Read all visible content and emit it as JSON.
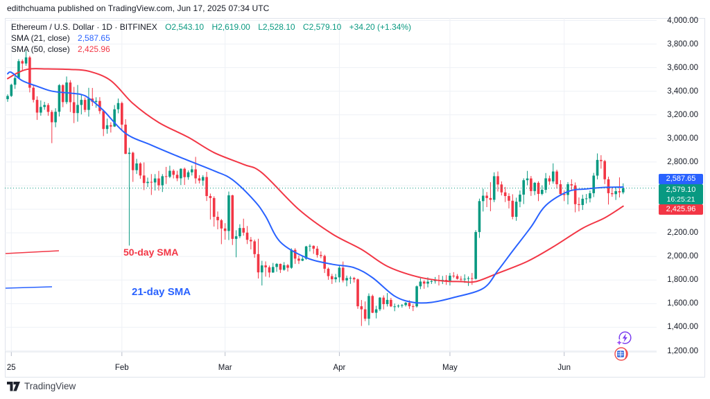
{
  "publication_note": "edithchuama published on TradingView.com, Jun 17, 2025 07:34 UTC",
  "legend": {
    "symbol_title": "Ethereum / U.S. Dollar · 1D · BITFINEX",
    "ohlc": {
      "open": "O2,543.10",
      "high": "H2,619.00",
      "low": "L2,528.10",
      "close": "C2,579.10",
      "change": "+34.20 (+1.34%)"
    },
    "sma21": {
      "label": "SMA (21, close)",
      "value": "2,587.65"
    },
    "sma50": {
      "label": "SMA (50, close)",
      "value": "2,425.96"
    }
  },
  "badges": {
    "sma21": "2,587.65",
    "last": "2,579.10",
    "countdown": "16:25:21",
    "sma50": "2,425.96"
  },
  "logo_text": "TradingView",
  "colors": {
    "up": "#089981",
    "down": "#f23645",
    "sma21": "#2962ff",
    "sma50": "#f23645",
    "grid": "#eef1f6",
    "border": "#dfe3eb",
    "text": "#131722",
    "tick": "#b7bcc9"
  },
  "price_axis": {
    "labels": [
      {
        "label": "4,000.00",
        "value": 4000
      },
      {
        "label": "3,800.00",
        "value": 3800
      },
      {
        "label": "3,600.00",
        "value": 3600
      },
      {
        "label": "3,400.00",
        "value": 3400
      },
      {
        "label": "3,200.00",
        "value": 3200
      },
      {
        "label": "3,000.00",
        "value": 3000
      },
      {
        "label": "2,800.00",
        "value": 2800
      },
      {
        "label": "2,200.00",
        "value": 2200
      },
      {
        "label": "2,000.00",
        "value": 2000
      },
      {
        "label": "1,800.00",
        "value": 1800
      },
      {
        "label": "1,600.00",
        "value": 1600
      },
      {
        "label": "1,400.00",
        "value": 1400
      },
      {
        "label": "1,200.00",
        "value": 1200
      }
    ]
  },
  "time_axis": {
    "ticks": [
      {
        "label": "25",
        "index": 1
      },
      {
        "label": "Feb",
        "index": 31
      },
      {
        "label": "Mar",
        "index": 59
      },
      {
        "label": "Apr",
        "index": 90
      },
      {
        "label": "May",
        "index": 120
      },
      {
        "label": "Jun",
        "index": 151
      }
    ]
  },
  "chart_data": {
    "type": "candlestick",
    "symbol": "ETHUSD",
    "exchange": "BITFINEX",
    "interval": "1D",
    "start_date": "2025-01-01",
    "end_date": "2025-06-17",
    "last_price": 2579.1,
    "last_ohlc": {
      "open": 2543.1,
      "high": 2619.0,
      "low": 2528.1,
      "close": 2579.1,
      "change": 34.2,
      "change_pct": 1.34
    },
    "sma21_last": 2587.65,
    "sma50_last": 2425.96,
    "ylim": [
      1191,
      4021
    ],
    "grid": {
      "price_min": 1200,
      "price_max": 4000,
      "price_step": 200
    },
    "candles": [
      [
        3333,
        3374,
        3310,
        3360
      ],
      [
        3360,
        3464,
        3352,
        3455
      ],
      [
        3455,
        3528,
        3420,
        3512
      ],
      [
        3512,
        3672,
        3505,
        3655
      ],
      [
        3655,
        3670,
        3570,
        3635
      ],
      [
        3635,
        3744,
        3615,
        3687
      ],
      [
        3687,
        3700,
        3390,
        3430
      ],
      [
        3430,
        3452,
        3305,
        3327
      ],
      [
        3327,
        3357,
        3157,
        3219
      ],
      [
        3219,
        3322,
        3193,
        3267
      ],
      [
        3267,
        3310,
        3243,
        3283
      ],
      [
        3283,
        3299,
        3192,
        3225
      ],
      [
        3225,
        3241,
        2960,
        3137
      ],
      [
        3137,
        3256,
        3095,
        3226
      ],
      [
        3226,
        3461,
        3186,
        3451
      ],
      [
        3451,
        3460,
        3265,
        3308
      ],
      [
        3308,
        3525,
        3291,
        3474
      ],
      [
        3474,
        3494,
        3224,
        3307
      ],
      [
        3307,
        3437,
        3130,
        3215
      ],
      [
        3215,
        3453,
        3142,
        3284
      ],
      [
        3284,
        3369,
        3204,
        3327
      ],
      [
        3327,
        3348,
        3222,
        3242
      ],
      [
        3242,
        3429,
        3185,
        3338
      ],
      [
        3338,
        3428,
        3275,
        3310
      ],
      [
        3310,
        3349,
        3260,
        3318
      ],
      [
        3318,
        3350,
        3208,
        3232
      ],
      [
        3232,
        3244,
        3020,
        3080
      ],
      [
        3080,
        3168,
        3040,
        3112
      ],
      [
        3112,
        3137,
        3050,
        3101
      ],
      [
        3101,
        3283,
        3097,
        3247
      ],
      [
        3247,
        3338,
        3213,
        3300
      ],
      [
        3300,
        3312,
        3062,
        3117
      ],
      [
        3117,
        3163,
        2867,
        2869
      ],
      [
        2869,
        2921,
        2092,
        2879
      ],
      [
        2879,
        2888,
        2632,
        2731
      ],
      [
        2731,
        2827,
        2699,
        2788
      ],
      [
        2788,
        2798,
        2658,
        2686
      ],
      [
        2686,
        2797,
        2562,
        2622
      ],
      [
        2622,
        2668,
        2588,
        2632
      ],
      [
        2632,
        2698,
        2521,
        2627
      ],
      [
        2627,
        2698,
        2559,
        2661
      ],
      [
        2661,
        2725,
        2558,
        2603
      ],
      [
        2603,
        2698,
        2546,
        2680
      ],
      [
        2680,
        2759,
        2614,
        2675
      ],
      [
        2675,
        2769,
        2664,
        2726
      ],
      [
        2726,
        2739,
        2661,
        2692
      ],
      [
        2692,
        2726,
        2638,
        2662
      ],
      [
        2662,
        2747,
        2605,
        2743
      ],
      [
        2743,
        2754,
        2606,
        2672
      ],
      [
        2672,
        2729,
        2650,
        2713
      ],
      [
        2713,
        2770,
        2686,
        2738
      ],
      [
        2738,
        2844,
        2617,
        2662
      ],
      [
        2662,
        2689,
        2619,
        2643
      ],
      [
        2643,
        2689,
        2599,
        2673
      ],
      [
        2673,
        2717,
        2470,
        2512
      ],
      [
        2512,
        2533,
        2313,
        2495
      ],
      [
        2495,
        2510,
        2253,
        2336
      ],
      [
        2336,
        2381,
        2230,
        2307
      ],
      [
        2307,
        2318,
        2104,
        2237
      ],
      [
        2237,
        2282,
        2142,
        2216
      ],
      [
        2216,
        2550,
        2139,
        2518
      ],
      [
        2518,
        2523,
        2097,
        2149
      ],
      [
        2149,
        2222,
        1993,
        2171
      ],
      [
        2171,
        2273,
        2155,
        2241
      ],
      [
        2241,
        2320,
        2176,
        2202
      ],
      [
        2202,
        2258,
        2105,
        2141
      ],
      [
        2141,
        2165,
        2060,
        2128
      ],
      [
        2128,
        2143,
        1989,
        2020
      ],
      [
        2020,
        2150,
        1813,
        1865
      ],
      [
        1865,
        1963,
        1754,
        1924
      ],
      [
        1924,
        1958,
        1829,
        1908
      ],
      [
        1908,
        1923,
        1822,
        1864
      ],
      [
        1864,
        1945,
        1861,
        1911
      ],
      [
        1911,
        1944,
        1870,
        1937
      ],
      [
        1937,
        1940,
        1860,
        1887
      ],
      [
        1887,
        1952,
        1879,
        1926
      ],
      [
        1926,
        1936,
        1872,
        1904
      ],
      [
        1904,
        2069,
        1895,
        2056
      ],
      [
        2056,
        2070,
        1937,
        1982
      ],
      [
        1982,
        2008,
        1936,
        1964
      ],
      [
        1964,
        2005,
        1960,
        1980
      ],
      [
        1980,
        2090,
        1972,
        2085
      ],
      [
        2085,
        2104,
        2043,
        2090
      ],
      [
        2090,
        2094,
        2022,
        2066
      ],
      [
        2066,
        2088,
        1990,
        2012
      ],
      [
        2012,
        2043,
        1985,
        2004
      ],
      [
        2004,
        2015,
        1860,
        1896
      ],
      [
        1896,
        1906,
        1802,
        1833
      ],
      [
        1833,
        1853,
        1767,
        1807
      ],
      [
        1807,
        1852,
        1780,
        1823
      ],
      [
        1823,
        1930,
        1781,
        1905
      ],
      [
        1905,
        1957,
        1780,
        1797
      ],
      [
        1797,
        1838,
        1747,
        1817
      ],
      [
        1817,
        1833,
        1768,
        1818
      ],
      [
        1818,
        1827,
        1779,
        1806
      ],
      [
        1806,
        1813,
        1556,
        1578
      ],
      [
        1578,
        1631,
        1411,
        1552
      ],
      [
        1552,
        1619,
        1452,
        1472
      ],
      [
        1472,
        1687,
        1417,
        1665
      ],
      [
        1665,
        1677,
        1520,
        1523
      ],
      [
        1523,
        1582,
        1475,
        1552
      ],
      [
        1552,
        1656,
        1537,
        1651
      ],
      [
        1651,
        1670,
        1551,
        1596
      ],
      [
        1596,
        1690,
        1576,
        1632
      ],
      [
        1632,
        1649,
        1571,
        1577
      ],
      [
        1577,
        1601,
        1536,
        1577
      ],
      [
        1577,
        1593,
        1565,
        1583
      ],
      [
        1583,
        1596,
        1566,
        1588
      ],
      [
        1588,
        1614,
        1576,
        1607
      ],
      [
        1607,
        1629,
        1556,
        1578
      ],
      [
        1578,
        1595,
        1537,
        1577
      ],
      [
        1577,
        1754,
        1567,
        1747
      ],
      [
        1747,
        1815,
        1723,
        1787
      ],
      [
        1787,
        1799,
        1726,
        1770
      ],
      [
        1770,
        1823,
        1738,
        1786
      ],
      [
        1786,
        1809,
        1767,
        1791
      ],
      [
        1791,
        1826,
        1770,
        1799
      ],
      [
        1799,
        1843,
        1754,
        1796
      ],
      [
        1796,
        1835,
        1766,
        1801
      ],
      [
        1801,
        1842,
        1759,
        1793
      ],
      [
        1793,
        1860,
        1754,
        1837
      ],
      [
        1837,
        1867,
        1817,
        1834
      ],
      [
        1834,
        1851,
        1804,
        1810
      ],
      [
        1810,
        1834,
        1785,
        1806
      ],
      [
        1806,
        1848,
        1776,
        1811
      ],
      [
        1811,
        1831,
        1750,
        1816
      ],
      [
        1816,
        1860,
        1759,
        1810
      ],
      [
        1810,
        2223,
        1805,
        2207
      ],
      [
        2207,
        2490,
        2157,
        2469
      ],
      [
        2469,
        2574,
        2381,
        2515
      ],
      [
        2515,
        2546,
        2418,
        2495
      ],
      [
        2495,
        2629,
        2383,
        2480
      ],
      [
        2480,
        2713,
        2460,
        2680
      ],
      [
        2680,
        2720,
        2550,
        2610
      ],
      [
        2610,
        2636,
        2517,
        2543
      ],
      [
        2543,
        2589,
        2461,
        2512
      ],
      [
        2512,
        2536,
        2407,
        2472
      ],
      [
        2472,
        2527,
        2315,
        2336
      ],
      [
        2336,
        2498,
        2302,
        2464
      ],
      [
        2464,
        2559,
        2417,
        2524
      ],
      [
        2524,
        2662,
        2444,
        2646
      ],
      [
        2646,
        2725,
        2603,
        2661
      ],
      [
        2661,
        2682,
        2513,
        2554
      ],
      [
        2554,
        2631,
        2520,
        2624
      ],
      [
        2624,
        2637,
        2469,
        2530
      ],
      [
        2530,
        2603,
        2518,
        2565
      ],
      [
        2565,
        2707,
        2538,
        2662
      ],
      [
        2662,
        2685,
        2607,
        2636
      ],
      [
        2636,
        2789,
        2617,
        2720
      ],
      [
        2720,
        2735,
        2575,
        2612
      ],
      [
        2612,
        2647,
        2515,
        2529
      ],
      [
        2529,
        2560,
        2469,
        2521
      ],
      [
        2521,
        2630,
        2441,
        2612
      ],
      [
        2612,
        2654,
        2563,
        2602
      ],
      [
        2602,
        2627,
        2374,
        2443
      ],
      [
        2443,
        2500,
        2382,
        2436
      ],
      [
        2436,
        2523,
        2394,
        2489
      ],
      [
        2489,
        2529,
        2449,
        2492
      ],
      [
        2492,
        2559,
        2458,
        2536
      ],
      [
        2536,
        2708,
        2503,
        2685
      ],
      [
        2685,
        2873,
        2653,
        2818
      ],
      [
        2818,
        2858,
        2744,
        2808
      ],
      [
        2808,
        2818,
        2613,
        2654
      ],
      [
        2654,
        2676,
        2440,
        2536
      ],
      [
        2536,
        2585,
        2506,
        2528
      ],
      [
        2528,
        2590,
        2479,
        2553
      ],
      [
        2553,
        2670,
        2500,
        2543
      ],
      [
        2543,
        2619,
        2528,
        2579
      ]
    ],
    "sma21": [
      [
        0,
        3548
      ],
      [
        1,
        3560
      ],
      [
        4,
        3489
      ],
      [
        8,
        3442
      ],
      [
        12,
        3401
      ],
      [
        17,
        3384
      ],
      [
        20,
        3372
      ],
      [
        22,
        3342
      ],
      [
        26,
        3237
      ],
      [
        32,
        3043
      ],
      [
        39,
        2943
      ],
      [
        47,
        2838
      ],
      [
        56,
        2726
      ],
      [
        61,
        2650
      ],
      [
        67,
        2470
      ],
      [
        70,
        2340
      ],
      [
        74,
        2122
      ],
      [
        81,
        1990
      ],
      [
        88,
        1934
      ],
      [
        94,
        1905
      ],
      [
        99,
        1820
      ],
      [
        105,
        1664
      ],
      [
        110,
        1611
      ],
      [
        115,
        1611
      ],
      [
        121,
        1652
      ],
      [
        129,
        1729
      ],
      [
        133,
        1880
      ],
      [
        137,
        2046
      ],
      [
        142,
        2250
      ],
      [
        146,
        2432
      ],
      [
        152,
        2550
      ],
      [
        157,
        2572
      ],
      [
        162,
        2585
      ],
      [
        167,
        2588
      ]
    ],
    "sma50": [
      [
        0,
        3507
      ],
      [
        3,
        3560
      ],
      [
        6,
        3589
      ],
      [
        11,
        3589
      ],
      [
        17,
        3585
      ],
      [
        22,
        3570
      ],
      [
        28,
        3490
      ],
      [
        34,
        3296
      ],
      [
        41,
        3135
      ],
      [
        49,
        3010
      ],
      [
        56,
        2880
      ],
      [
        64,
        2780
      ],
      [
        69,
        2709
      ],
      [
        79,
        2398
      ],
      [
        88,
        2192
      ],
      [
        96,
        2060
      ],
      [
        103,
        1917
      ],
      [
        111,
        1829
      ],
      [
        118,
        1793
      ],
      [
        123,
        1787
      ],
      [
        127,
        1787
      ],
      [
        133,
        1858
      ],
      [
        141,
        1958
      ],
      [
        148,
        2081
      ],
      [
        156,
        2239
      ],
      [
        162,
        2327
      ],
      [
        167,
        2426
      ]
    ],
    "annotations": {
      "segments": [
        {
          "name": "sma50-callout-line",
          "x1": 8,
          "y1": 366,
          "x2": 85,
          "y2": 362,
          "color_key": "sma50"
        },
        {
          "name": "sma21-callout-line",
          "x1": 8,
          "y1": 416,
          "x2": 75,
          "y2": 414,
          "color_key": "sma21"
        }
      ],
      "labels": [
        {
          "name": "sma50-callout-label",
          "text": "50-day SMA",
          "x": 178,
          "y": 369,
          "color_key": "sma50",
          "size": 14
        },
        {
          "name": "sma21-callout-label",
          "text": "21-day SMA",
          "x": 190,
          "y": 426,
          "color_key": "sma21",
          "size": 15
        }
      ]
    }
  }
}
